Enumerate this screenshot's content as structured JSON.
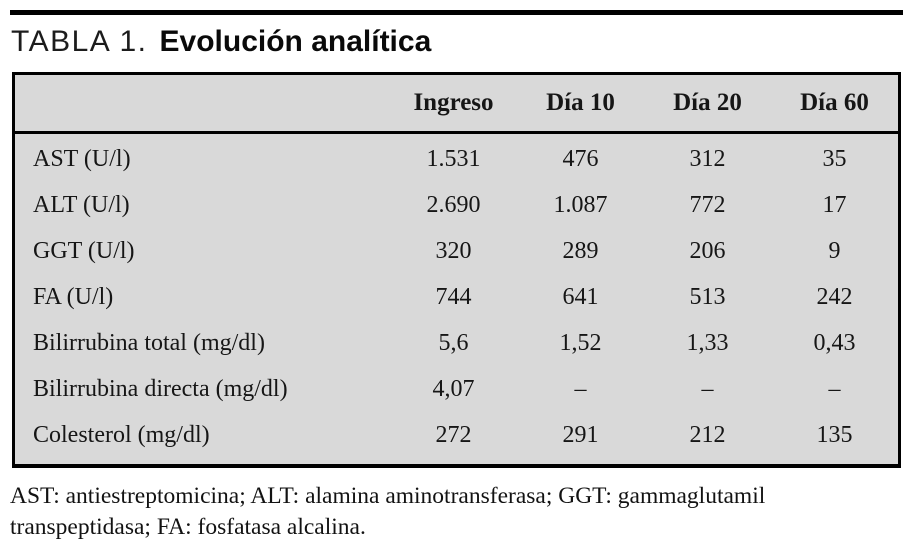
{
  "title": {
    "number": "TABLA 1.",
    "text": "Evolución analítica"
  },
  "table": {
    "columns": [
      "",
      "Ingreso",
      "Día 10",
      "Día 20",
      "Día 60"
    ],
    "rows": [
      {
        "label": "AST (U/l)",
        "values": [
          "1.531",
          "476",
          "312",
          "35"
        ]
      },
      {
        "label": "ALT (U/l)",
        "values": [
          "2.690",
          "1.087",
          "772",
          "17"
        ]
      },
      {
        "label": "GGT (U/l)",
        "values": [
          "320",
          "289",
          "206",
          "9"
        ]
      },
      {
        "label": "FA (U/l)",
        "values": [
          "744",
          "641",
          "513",
          "242"
        ]
      },
      {
        "label": "Bilirrubina total (mg/dl)",
        "values": [
          "5,6",
          "1,52",
          "1,33",
          "0,43"
        ]
      },
      {
        "label": "Bilirrubina directa (mg/dl)",
        "values": [
          "4,07",
          "–",
          "–",
          "–"
        ]
      },
      {
        "label": "Colesterol (mg/dl)",
        "values": [
          "272",
          "291",
          "212",
          "135"
        ]
      }
    ]
  },
  "footnote": {
    "lines": [
      "AST: antiestreptomicina; ALT: alamina aminotransferasa; GGT: gammaglutamil",
      "transpeptidasa; FA: fosfatasa alcalina."
    ]
  },
  "colors": {
    "table_fill": "#d9d9d9",
    "border": "#000000",
    "text": "#161616"
  }
}
